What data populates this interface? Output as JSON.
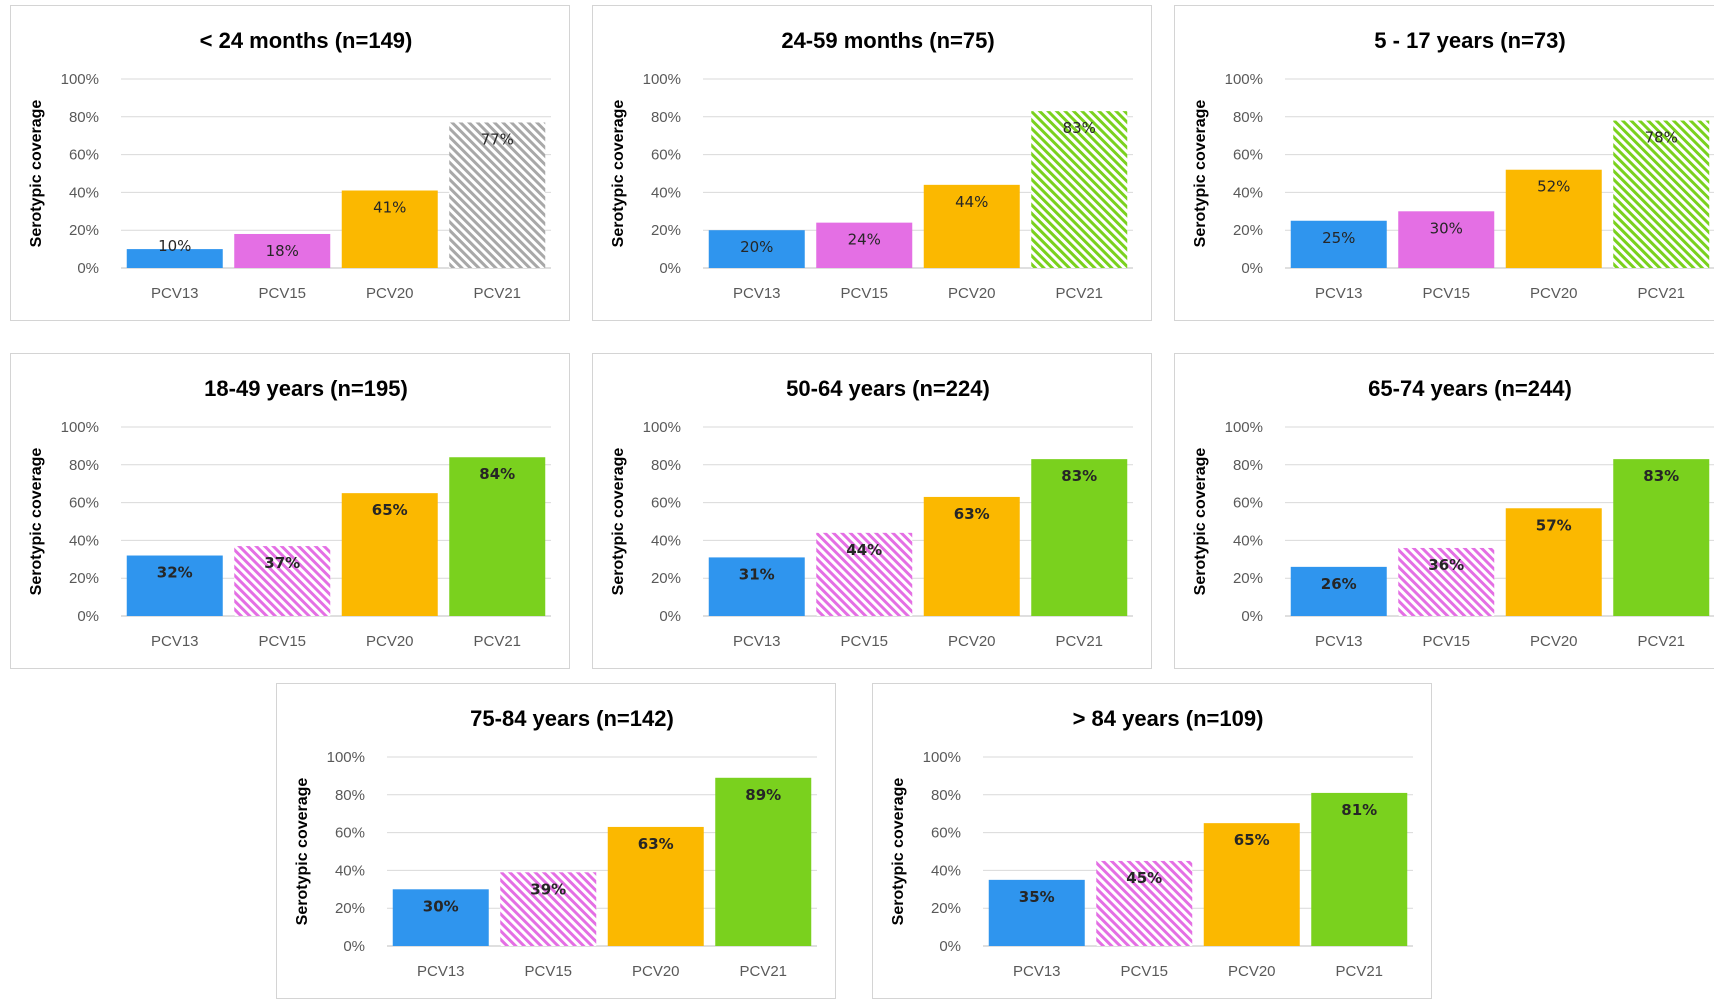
{
  "ylabel": "Serotypic coverage",
  "chart_data": [
    {
      "type": "bar",
      "title": "< 24 months (n=149)",
      "categories": [
        "PCV13",
        "PCV15",
        "PCV20",
        "PCV21"
      ],
      "values": [
        10,
        18,
        41,
        77
      ],
      "labels": [
        "10%",
        "18%",
        "41%",
        "77%"
      ],
      "hatched": [
        false,
        false,
        false,
        true
      ],
      "ylabel": "Serotypic coverage",
      "ylim": [
        0,
        100
      ],
      "yticks": [
        "0%",
        "20%",
        "40%",
        "60%",
        "80%",
        "100%"
      ],
      "grid": true,
      "legend": "none"
    },
    {
      "type": "bar",
      "title": "24-59 months (n=75)",
      "categories": [
        "PCV13",
        "PCV15",
        "PCV20",
        "PCV21"
      ],
      "values": [
        20,
        24,
        44,
        83
      ],
      "labels": [
        "20%",
        "24%",
        "44%",
        "83%"
      ],
      "hatched": [
        false,
        false,
        false,
        true
      ],
      "ylabel": "Serotypic coverage",
      "ylim": [
        0,
        100
      ],
      "yticks": [
        "0%",
        "20%",
        "40%",
        "60%",
        "80%",
        "100%"
      ],
      "grid": true,
      "legend": "none"
    },
    {
      "type": "bar",
      "title": "5 - 17 years (n=73)",
      "categories": [
        "PCV13",
        "PCV15",
        "PCV20",
        "PCV21"
      ],
      "values": [
        25,
        30,
        52,
        78
      ],
      "labels": [
        "25%",
        "30%",
        "52%",
        "78%"
      ],
      "hatched": [
        false,
        false,
        false,
        true
      ],
      "ylabel": "Serotypic coverage",
      "ylim": [
        0,
        100
      ],
      "yticks": [
        "0%",
        "20%",
        "40%",
        "60%",
        "80%",
        "100%"
      ],
      "grid": true,
      "legend": "none"
    },
    {
      "type": "bar",
      "title": "18-49 years (n=195)",
      "categories": [
        "PCV13",
        "PCV15",
        "PCV20",
        "PCV21"
      ],
      "values": [
        32,
        37,
        65,
        84
      ],
      "labels": [
        "32%",
        "37%",
        "65%",
        "84%"
      ],
      "hatched": [
        false,
        true,
        false,
        false
      ],
      "ylabel": "Serotypic coverage",
      "ylim": [
        0,
        100
      ],
      "yticks": [
        "0%",
        "20%",
        "40%",
        "60%",
        "80%",
        "100%"
      ],
      "grid": true,
      "legend": "none"
    },
    {
      "type": "bar",
      "title": "50-64 years (n=224)",
      "categories": [
        "PCV13",
        "PCV15",
        "PCV20",
        "PCV21"
      ],
      "values": [
        31,
        44,
        63,
        83
      ],
      "labels": [
        "31%",
        "44%",
        "63%",
        "83%"
      ],
      "hatched": [
        false,
        true,
        false,
        false
      ],
      "ylabel": "Serotypic coverage",
      "ylim": [
        0,
        100
      ],
      "yticks": [
        "0%",
        "20%",
        "40%",
        "60%",
        "80%",
        "100%"
      ],
      "grid": true,
      "legend": "none"
    },
    {
      "type": "bar",
      "title": "65-74 years (n=244)",
      "categories": [
        "PCV13",
        "PCV15",
        "PCV20",
        "PCV21"
      ],
      "values": [
        26,
        36,
        57,
        83
      ],
      "labels": [
        "26%",
        "36%",
        "57%",
        "83%"
      ],
      "hatched": [
        false,
        true,
        false,
        false
      ],
      "ylabel": "Serotypic coverage",
      "ylim": [
        0,
        100
      ],
      "yticks": [
        "0%",
        "20%",
        "40%",
        "60%",
        "80%",
        "100%"
      ],
      "grid": true,
      "legend": "none"
    },
    {
      "type": "bar",
      "title": "75-84 years (n=142)",
      "categories": [
        "PCV13",
        "PCV15",
        "PCV20",
        "PCV21"
      ],
      "values": [
        30,
        39,
        63,
        89
      ],
      "labels": [
        "30%",
        "39%",
        "63%",
        "89%"
      ],
      "hatched": [
        false,
        true,
        false,
        false
      ],
      "ylabel": "Serotypic coverage",
      "ylim": [
        0,
        100
      ],
      "yticks": [
        "0%",
        "20%",
        "40%",
        "60%",
        "80%",
        "100%"
      ],
      "grid": true,
      "legend": "none"
    },
    {
      "type": "bar",
      "title": "> 84 years (n=109)",
      "categories": [
        "PCV13",
        "PCV15",
        "PCV20",
        "PCV21"
      ],
      "values": [
        35,
        45,
        65,
        81
      ],
      "labels": [
        "35%",
        "45%",
        "65%",
        "81%"
      ],
      "hatched": [
        false,
        true,
        false,
        false
      ],
      "ylabel": "Serotypic coverage",
      "ylim": [
        0,
        100
      ],
      "yticks": [
        "0%",
        "20%",
        "40%",
        "60%",
        "80%",
        "100%"
      ],
      "grid": true,
      "legend": "none"
    }
  ],
  "colors": {
    "PCV13": "#2f95ee",
    "PCV15": "#e46fe4",
    "PCV20": "#fbb800",
    "PCV21": "#7ad11e",
    "PCV21_hatch_first": "#a8a8a8",
    "grid": "#d9d9d9",
    "axis": "#bfbfbf"
  }
}
